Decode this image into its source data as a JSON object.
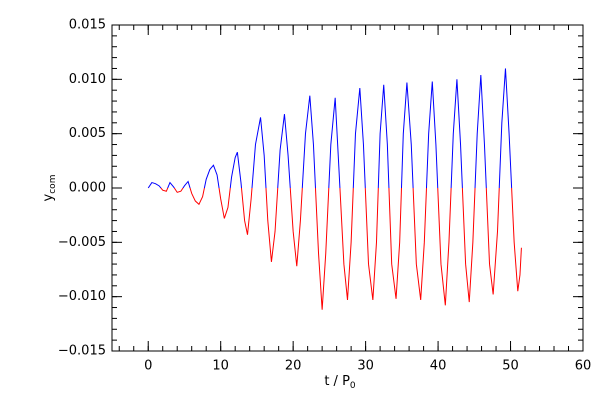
{
  "chart_data": {
    "type": "line",
    "xlabel": {
      "text": "t / P",
      "subscript": "0"
    },
    "ylabel": {
      "text": "y",
      "subscript": "com"
    },
    "xlim": [
      -5,
      60
    ],
    "xticks": [
      0,
      10,
      20,
      30,
      40,
      50,
      60
    ],
    "ylim": [
      -0.015,
      0.015
    ],
    "yticks": [
      {
        "value": -0.015,
        "label": "−0.015"
      },
      {
        "value": -0.01,
        "label": "−0.010"
      },
      {
        "value": -0.005,
        "label": "−0.005"
      },
      {
        "value": 0,
        "label": "0.000"
      },
      {
        "value": 0.005,
        "label": "0.005"
      },
      {
        "value": 0.01,
        "label": "0.010"
      },
      {
        "value": 0.015,
        "label": "0.015"
      }
    ],
    "minor_ticks": {
      "x": 5,
      "y": 5
    },
    "x": [
      0,
      0.5,
      1,
      1.5,
      2,
      2.5,
      3,
      3.5,
      4,
      4.5,
      5,
      5.5,
      6,
      6.5,
      7,
      7.5,
      8,
      8.5,
      9,
      9.5,
      10,
      10.5,
      11,
      11.5,
      12,
      12.3,
      12.8,
      13.3,
      13.7,
      14.2,
      14.8,
      15.5,
      16,
      16.5,
      17,
      17.5,
      18.2,
      18.8,
      19.3,
      20,
      20.5,
      21,
      21.7,
      22.3,
      22.8,
      23.5,
      24,
      24.5,
      25.2,
      25.8,
      26.3,
      27,
      27.5,
      28,
      28.6,
      29.2,
      29.7,
      30.4,
      31,
      31.5,
      32,
      32.5,
      33,
      33.6,
      34.2,
      34.7,
      35.2,
      35.7,
      36.3,
      37,
      37.6,
      38.1,
      38.7,
      39.2,
      39.7,
      40.4,
      41,
      41.5,
      42.1,
      42.6,
      43.1,
      43.8,
      44.3,
      44.8,
      45.4,
      45.9,
      46.4,
      47.1,
      47.6,
      48.2,
      48.8,
      49.3,
      49.8,
      50.5,
      51,
      51.3,
      51.5
    ],
    "series": [
      {
        "color_above_zero": "#0000ff",
        "color_below_zero": "#ff0000",
        "values": [
          0,
          0.0005,
          0.0004,
          0.0002,
          -0.0002,
          -0.0003,
          0.0005,
          0.0001,
          -0.0004,
          -0.0003,
          0.0002,
          0.0006,
          -0.0005,
          -0.0012,
          -0.0015,
          -0.0008,
          0.0008,
          0.0017,
          0.0021,
          0.0012,
          -0.001,
          -0.0028,
          -0.0018,
          0.001,
          0.0028,
          0.0033,
          0.0005,
          -0.003,
          -0.0043,
          -0.001,
          0.004,
          0.0065,
          0.003,
          -0.003,
          -0.0068,
          -0.004,
          0.0035,
          0.0068,
          0.003,
          -0.004,
          -0.0072,
          -0.003,
          0.005,
          0.0085,
          0.004,
          -0.006,
          -0.0112,
          -0.006,
          0.004,
          0.0083,
          0.002,
          -0.007,
          -0.0103,
          -0.005,
          0.005,
          0.0092,
          0.004,
          -0.007,
          -0.0103,
          -0.005,
          0.005,
          0.0095,
          0.004,
          -0.007,
          -0.0102,
          -0.005,
          0.005,
          0.0097,
          0.004,
          -0.007,
          -0.0103,
          -0.005,
          0.005,
          0.0098,
          0.004,
          -0.007,
          -0.0108,
          -0.005,
          0.005,
          0.01,
          0.004,
          -0.007,
          -0.0105,
          -0.005,
          0.005,
          0.0104,
          0.004,
          -0.007,
          -0.0098,
          -0.004,
          0.006,
          0.011,
          0.005,
          -0.005,
          -0.0095,
          -0.008,
          -0.0055
        ]
      }
    ]
  }
}
